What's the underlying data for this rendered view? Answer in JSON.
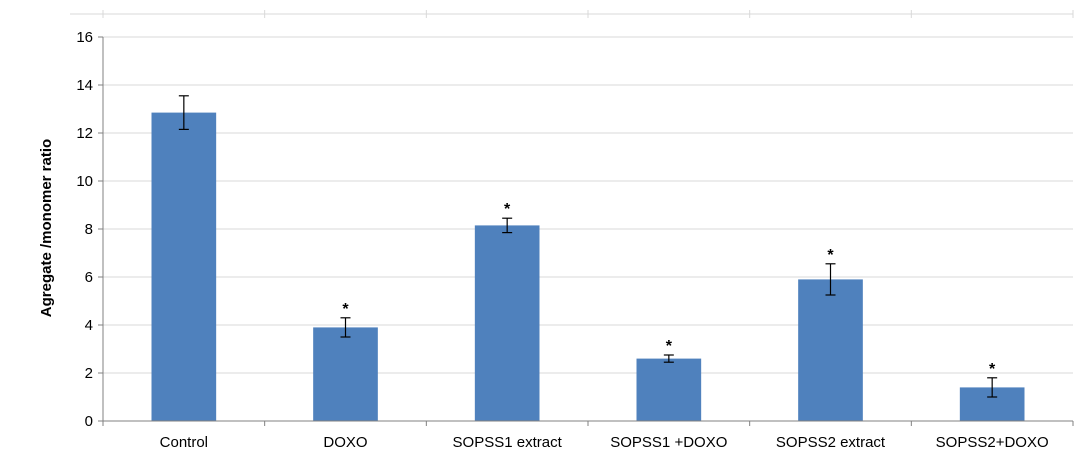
{
  "chart_data": {
    "type": "bar",
    "title": "",
    "xlabel": "",
    "ylabel": "Agregate /monomer ratio",
    "categories": [
      "Control",
      "DOXO",
      "SOPSS1 extract",
      "SOPSS1 +DOXO",
      "SOPSS2 extract",
      "SOPSS2+DOXO"
    ],
    "values": [
      12.85,
      3.9,
      8.15,
      2.6,
      5.9,
      1.4
    ],
    "error": [
      0.7,
      0.4,
      0.3,
      0.15,
      0.65,
      0.4
    ],
    "significance": [
      "",
      "*",
      "*",
      "*",
      "*",
      "*"
    ],
    "ylim": [
      0,
      16
    ],
    "yticks": [
      0,
      2,
      4,
      6,
      8,
      10,
      12,
      14,
      16
    ],
    "grid": true,
    "legend": "none",
    "bar_color": "#4f81bd",
    "grid_color": "#d9d9d9"
  }
}
